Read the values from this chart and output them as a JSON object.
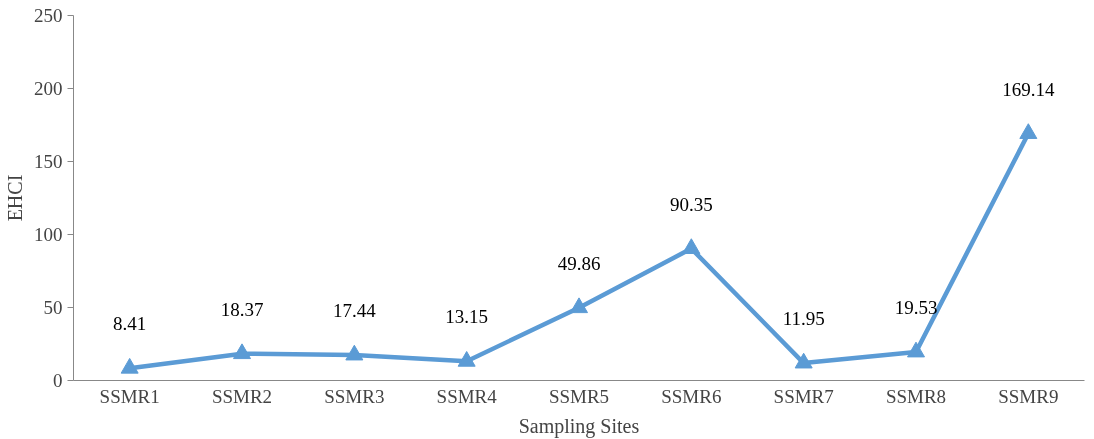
{
  "chart_data": {
    "type": "line",
    "xlabel": "Sampling Sites",
    "ylabel": "EHCI",
    "categories": [
      "SSMR1",
      "SSMR2",
      "SSMR3",
      "SSMR4",
      "SSMR5",
      "SSMR6",
      "SSMR7",
      "SSMR8",
      "SSMR9"
    ],
    "series": [
      {
        "color": "#5b9bd5",
        "values": [
          8.41,
          18.37,
          17.44,
          13.15,
          49.86,
          90.35,
          11.95,
          19.53,
          169.14
        ]
      }
    ],
    "ylim": [
      0,
      250
    ],
    "yticks": [
      0,
      50,
      100,
      150,
      200,
      250
    ],
    "grid": false,
    "marker": "triangle",
    "line_style": "solid",
    "data_labels": true
  }
}
